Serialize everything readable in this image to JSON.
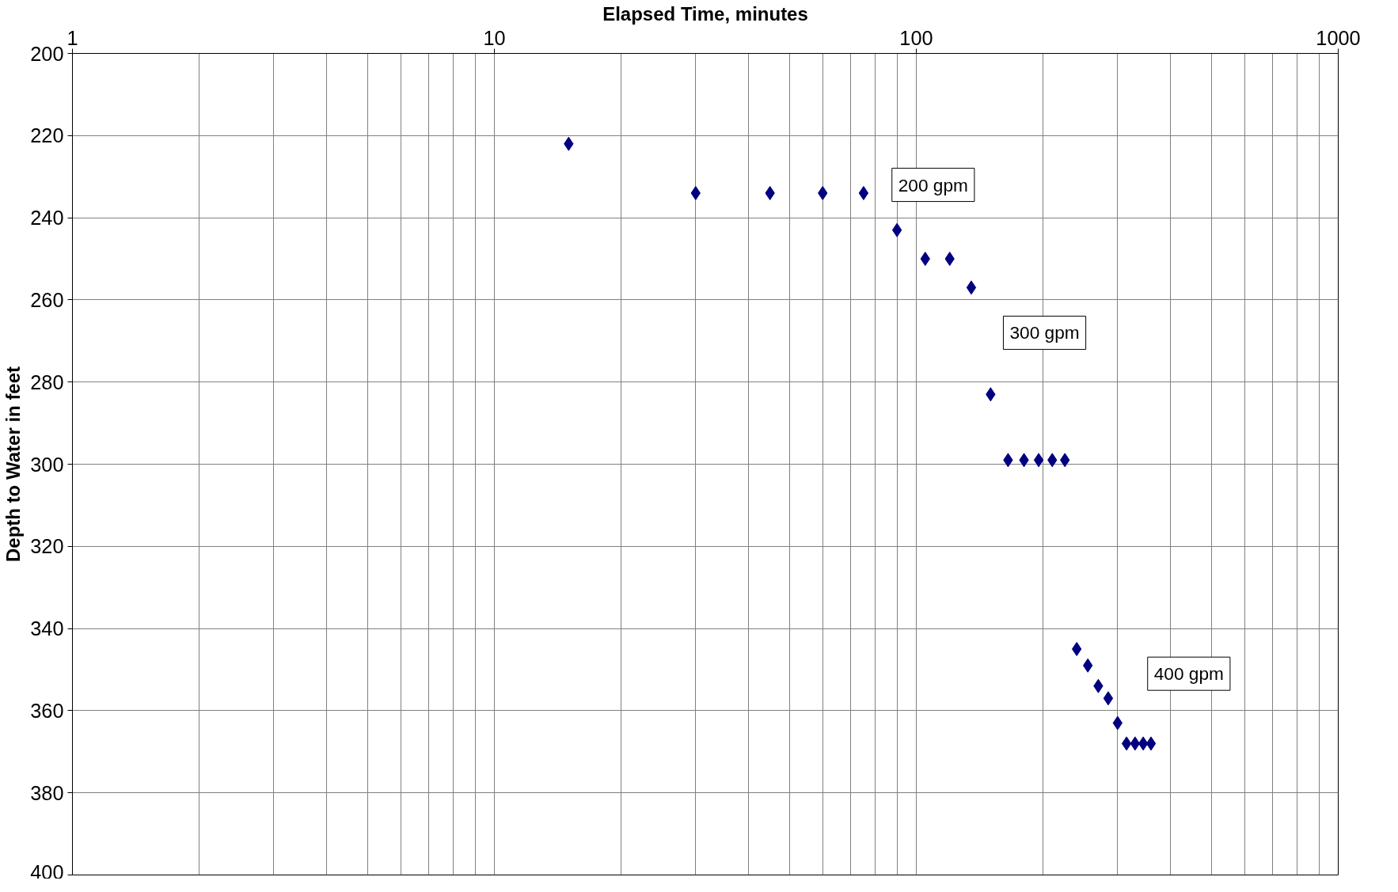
{
  "chart_data": {
    "type": "scatter",
    "xlabel": "Elapsed Time, minutes",
    "ylabel": "Depth to Water in feet",
    "x": [
      15,
      30,
      45,
      60,
      75,
      90,
      105,
      120,
      135,
      150,
      165,
      180,
      195,
      210,
      225,
      240,
      255,
      270,
      285,
      300,
      315,
      330,
      345,
      360
    ],
    "series": [
      {
        "color": "#000080",
        "values": [
          222,
          234,
          234,
          234,
          234,
          243,
          250,
          250,
          257,
          283,
          299,
          299,
          299,
          299,
          299,
          345,
          349,
          354,
          357,
          363,
          368,
          368,
          368,
          368
        ]
      }
    ],
    "log": "x",
    "xlim": [
      1,
      1000
    ],
    "xticks": [
      1,
      10,
      100,
      1000
    ],
    "ylim": [
      400,
      200
    ],
    "yticks": [
      200,
      220,
      240,
      260,
      280,
      300,
      320,
      340,
      360,
      380,
      400
    ],
    "grid": true,
    "marker": "diamond",
    "annotations": [
      "200 gpm",
      "300 gpm",
      "400 gpm"
    ]
  }
}
